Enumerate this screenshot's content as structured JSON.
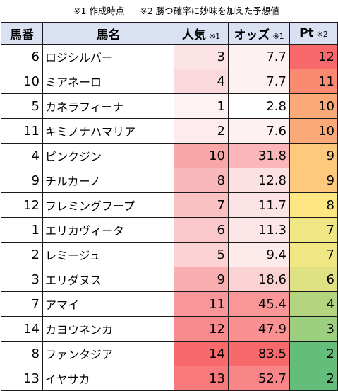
{
  "notes": {
    "note1": "※1 作成時点",
    "note2": "※2 勝つ確率に妙味を加えた予想値"
  },
  "headers": {
    "number": "馬番",
    "name": "馬名",
    "popularity": "人気",
    "popularity_note": "※1",
    "odds": "オッズ",
    "odds_note": "※1",
    "pt": "Pt",
    "pt_note": "※2"
  },
  "rows": [
    {
      "no": "6",
      "name": "ロジシルバー",
      "pop": "3",
      "odds": "7.7",
      "pt": "12",
      "pop_color": "#fce4e6",
      "odds_color": "#fdf1f2",
      "pt_color": "#f8696b"
    },
    {
      "no": "10",
      "name": "ミアネーロ",
      "pop": "4",
      "odds": "7.7",
      "pt": "11",
      "pop_color": "#fbdadd",
      "odds_color": "#fdf1f2",
      "pt_color": "#fa8b72"
    },
    {
      "no": "5",
      "name": "カネラフィーナ",
      "pop": "1",
      "odds": "2.8",
      "pt": "10",
      "pop_color": "#fdf3f4",
      "odds_color": "#ffffff",
      "pt_color": "#fbaa77"
    },
    {
      "no": "11",
      "name": "キミノナハマリア",
      "pop": "2",
      "odds": "7.6",
      "pt": "10",
      "pop_color": "#fdebed",
      "odds_color": "#fdf1f2",
      "pt_color": "#fbaa77"
    },
    {
      "no": "4",
      "name": "ピンクジン",
      "pop": "10",
      "odds": "31.8",
      "pt": "9",
      "pop_color": "#f8a6a8",
      "odds_color": "#fab6b8",
      "pt_color": "#fdc97d"
    },
    {
      "no": "9",
      "name": "チルカーノ",
      "pop": "8",
      "odds": "12.8",
      "pt": "9",
      "pop_color": "#f9b8ba",
      "odds_color": "#fce1e3",
      "pt_color": "#fdc97d"
    },
    {
      "no": "12",
      "name": "フレミングフープ",
      "pop": "7",
      "odds": "11.7",
      "pt": "8",
      "pop_color": "#fac1c3",
      "odds_color": "#fce4e6",
      "pt_color": "#fee782"
    },
    {
      "no": "1",
      "name": "エリカヴィータ",
      "pop": "6",
      "odds": "11.3",
      "pt": "7",
      "pop_color": "#fac8ca",
      "odds_color": "#fce5e7",
      "pt_color": "#f0e784"
    },
    {
      "no": "2",
      "name": "レミージュ",
      "pop": "5",
      "odds": "9.4",
      "pt": "7",
      "pop_color": "#fbd1d3",
      "odds_color": "#fdebec",
      "pt_color": "#f0e784"
    },
    {
      "no": "3",
      "name": "エリダヌス",
      "pop": "9",
      "odds": "18.6",
      "pt": "6",
      "pop_color": "#f9aeb0",
      "odds_color": "#fbd2d4",
      "pt_color": "#dfe283"
    },
    {
      "no": "7",
      "name": "アマイ",
      "pop": "11",
      "odds": "45.4",
      "pt": "4",
      "pop_color": "#f79799",
      "odds_color": "#f99698",
      "pt_color": "#b3d580"
    },
    {
      "no": "14",
      "name": "カヨウネンカ",
      "pop": "12",
      "odds": "47.9",
      "pt": "3",
      "pop_color": "#f68a8c",
      "odds_color": "#f99092",
      "pt_color": "#9ccf7f"
    },
    {
      "no": "8",
      "name": "ファンタジア",
      "pop": "14",
      "odds": "83.5",
      "pt": "2",
      "pop_color": "#f8696b",
      "odds_color": "#f8696b",
      "pt_color": "#63be7b"
    },
    {
      "no": "13",
      "name": "イヤサカ",
      "pop": "13",
      "odds": "52.7",
      "pt": "2",
      "pop_color": "#f7797b",
      "odds_color": "#f88587",
      "pt_color": "#63be7b"
    }
  ]
}
